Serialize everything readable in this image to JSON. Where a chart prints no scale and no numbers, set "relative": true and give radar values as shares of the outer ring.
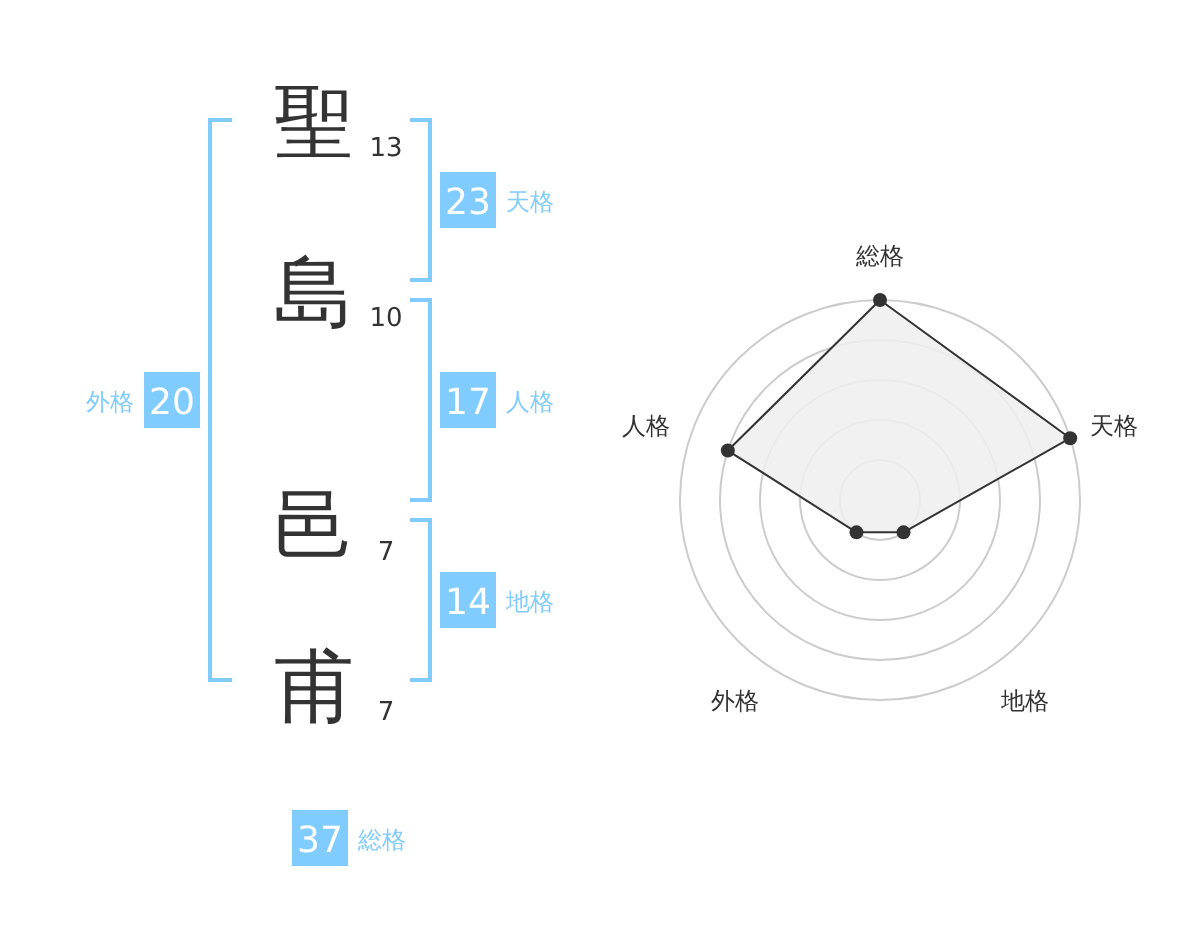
{
  "chart_data": [
    {
      "type": "other",
      "categories": [
        "聖",
        "島",
        "邑",
        "甫"
      ],
      "values": [
        13,
        10,
        7,
        7
      ],
      "data_labels": true,
      "annotations": [
        "23",
        "天格",
        "17",
        "人格",
        "14",
        "地格",
        "20",
        "外格",
        "37",
        "総格"
      ]
    },
    {
      "type": "radar",
      "categories": [
        "総格",
        "天格",
        "地格",
        "外格",
        "人格"
      ],
      "relative": true,
      "grid": true,
      "marker": "circle",
      "series": [
        {
          "color": "#333333",
          "values": [
            1,
            1,
            0.2,
            0.2,
            0.8
          ]
        }
      ]
    }
  ]
}
